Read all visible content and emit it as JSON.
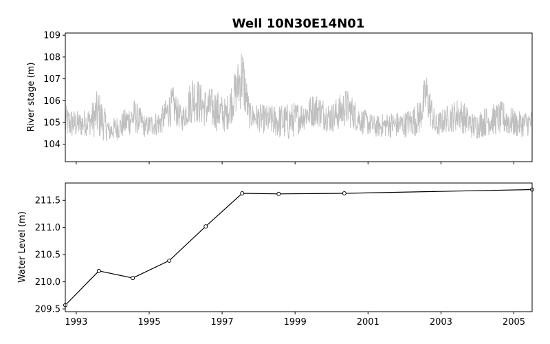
{
  "chart_data": [
    {
      "type": "line",
      "title": "Well 10N30E14N01",
      "xlabel": "",
      "ylabel": "River stage (m)",
      "xlim": [
        1992.7,
        2005.5
      ],
      "ylim": [
        103.2,
        109.1
      ],
      "yticks": [
        104,
        105,
        106,
        107,
        108,
        109
      ],
      "xticks": [
        "1993",
        "1995",
        "1997",
        "1999",
        "2001",
        "2003",
        "2005"
      ],
      "xtick_labels_visible": false,
      "series": [
        {
          "color": "#bfbfbf",
          "style": "dense daily trace",
          "envelope": [
            {
              "x": 1992.7,
              "base": 105.0,
              "amp": 0.8
            },
            {
              "x": 1993.1,
              "base": 104.9,
              "amp": 0.6
            },
            {
              "x": 1993.4,
              "base": 105.1,
              "amp": 0.7
            },
            {
              "x": 1993.6,
              "base": 105.4,
              "amp": 1.2
            },
            {
              "x": 1993.9,
              "base": 104.6,
              "amp": 0.5
            },
            {
              "x": 1994.2,
              "base": 104.8,
              "amp": 0.6
            },
            {
              "x": 1994.6,
              "base": 105.3,
              "amp": 0.8
            },
            {
              "x": 1994.9,
              "base": 104.8,
              "amp": 0.5
            },
            {
              "x": 1995.3,
              "base": 105.0,
              "amp": 0.6
            },
            {
              "x": 1995.65,
              "base": 105.8,
              "amp": 0.9
            },
            {
              "x": 1995.9,
              "base": 105.1,
              "amp": 0.5
            },
            {
              "x": 1996.2,
              "base": 106.2,
              "amp": 1.2
            },
            {
              "x": 1996.5,
              "base": 105.7,
              "amp": 0.9
            },
            {
              "x": 1996.8,
              "base": 105.6,
              "amp": 1.0
            },
            {
              "x": 1997.1,
              "base": 105.3,
              "amp": 0.8
            },
            {
              "x": 1997.4,
              "base": 106.5,
              "amp": 1.1
            },
            {
              "x": 1997.55,
              "base": 107.2,
              "amp": 1.6
            },
            {
              "x": 1997.75,
              "base": 105.3,
              "amp": 0.6
            },
            {
              "x": 1998.3,
              "base": 105.1,
              "amp": 0.7
            },
            {
              "x": 1998.8,
              "base": 105.0,
              "amp": 0.9
            },
            {
              "x": 1999.2,
              "base": 105.3,
              "amp": 0.7
            },
            {
              "x": 1999.55,
              "base": 105.6,
              "amp": 0.8
            },
            {
              "x": 2000.0,
              "base": 105.2,
              "amp": 0.7
            },
            {
              "x": 2000.4,
              "base": 105.7,
              "amp": 0.9
            },
            {
              "x": 2000.8,
              "base": 105.1,
              "amp": 0.6
            },
            {
              "x": 2001.2,
              "base": 104.8,
              "amp": 0.5
            },
            {
              "x": 2001.6,
              "base": 104.9,
              "amp": 0.6
            },
            {
              "x": 2002.0,
              "base": 104.9,
              "amp": 0.6
            },
            {
              "x": 2002.4,
              "base": 105.2,
              "amp": 0.8
            },
            {
              "x": 2002.6,
              "base": 106.3,
              "amp": 1.1
            },
            {
              "x": 2002.85,
              "base": 104.8,
              "amp": 0.6
            },
            {
              "x": 2003.1,
              "base": 105.1,
              "amp": 0.6
            },
            {
              "x": 2003.5,
              "base": 105.4,
              "amp": 0.8
            },
            {
              "x": 2003.9,
              "base": 104.8,
              "amp": 0.6
            },
            {
              "x": 2004.3,
              "base": 105.1,
              "amp": 0.7
            },
            {
              "x": 2004.7,
              "base": 105.2,
              "amp": 0.8
            },
            {
              "x": 2005.1,
              "base": 104.9,
              "amp": 0.6
            },
            {
              "x": 2005.5,
              "base": 105.0,
              "amp": 0.6
            }
          ]
        }
      ],
      "grid": false,
      "legend": "none"
    },
    {
      "type": "line",
      "title": "",
      "xlabel": "",
      "ylabel": "Water Level (m)",
      "xlim": [
        1992.7,
        2005.5
      ],
      "ylim": [
        209.45,
        211.82
      ],
      "yticks": [
        "209.5",
        "210.0",
        "210.5",
        "211.0",
        "211.5"
      ],
      "xticks": [
        "1993",
        "1995",
        "1997",
        "1999",
        "2001",
        "2003",
        "2005"
      ],
      "series": [
        {
          "color": "#000000",
          "marker": "open circle",
          "x": [
            1992.7,
            1993.62,
            1994.55,
            1995.55,
            1996.55,
            1997.55,
            1998.55,
            2000.35,
            2005.5
          ],
          "y": [
            209.57,
            210.2,
            210.07,
            210.39,
            211.02,
            211.63,
            211.62,
            211.63,
            211.7
          ]
        }
      ],
      "grid": false,
      "legend": "none"
    }
  ]
}
